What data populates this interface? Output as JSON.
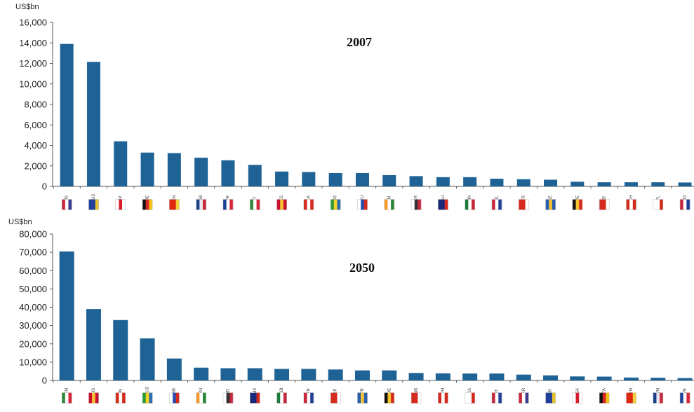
{
  "chart_data": [
    {
      "type": "bar",
      "title": "2007",
      "ylabel": "US$bn",
      "ylim": [
        0,
        16000
      ],
      "yticks": [
        0,
        2000,
        4000,
        6000,
        8000,
        10000,
        12000,
        14000,
        16000
      ],
      "ytick_labels": [
        "0",
        "2,000",
        "4,000",
        "6,000",
        "8,000",
        "10,000",
        "12,000",
        "14,000",
        "16,000"
      ],
      "categories": [
        "US",
        "EU3",
        "JP",
        "DE",
        "CN",
        "GB",
        "FR",
        "IT",
        "ES",
        "CA",
        "BR",
        "RU",
        "IN",
        "KR",
        "AU",
        "MX",
        "NL",
        "TR",
        "SE",
        "BE",
        "ID",
        "CH",
        "PL",
        "NO"
      ],
      "values": [
        13900,
        12150,
        4400,
        3300,
        3250,
        2800,
        2550,
        2100,
        1450,
        1400,
        1300,
        1300,
        1100,
        1000,
        900,
        900,
        750,
        700,
        650,
        450,
        400,
        400,
        400,
        380
      ],
      "bar_color": "#1f6396",
      "grid": false
    },
    {
      "type": "bar",
      "title": "2050",
      "ylabel": "US$bn",
      "ylim": [
        0,
        80000
      ],
      "yticks": [
        0,
        10000,
        20000,
        30000,
        40000,
        50000,
        60000,
        70000,
        80000
      ],
      "ytick_labels": [
        "0",
        "10,000",
        "20,000",
        "30,000",
        "40,000",
        "50,000",
        "60,000",
        "70,000",
        "80,000"
      ],
      "categories": [
        "CN",
        "US",
        "IN",
        "EU3",
        "BR",
        "RU",
        "ID",
        "MX",
        "GB",
        "TR",
        "JP",
        "FR",
        "DE",
        "NG",
        "PH",
        "CA",
        "IT",
        "KR",
        "IR",
        "SA",
        "ZA",
        "TH",
        "VN",
        "VE"
      ],
      "values": [
        70500,
        39000,
        33000,
        23000,
        12000,
        7000,
        6700,
        6700,
        6300,
        6300,
        6000,
        5500,
        5500,
        4100,
        3900,
        3800,
        3800,
        3200,
        2800,
        2200,
        2100,
        1600,
        1500,
        1300
      ],
      "bar_color": "#1f6396",
      "grid": false
    }
  ]
}
